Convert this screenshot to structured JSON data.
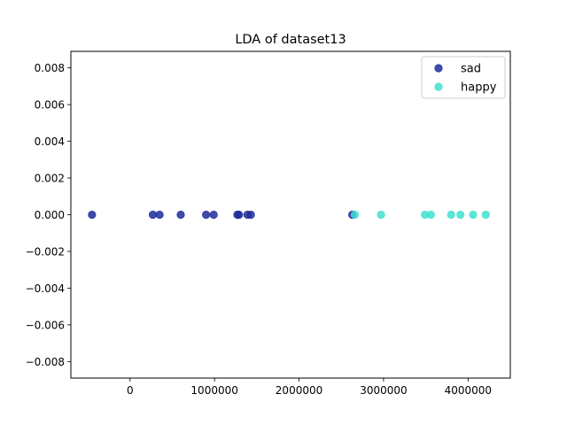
{
  "chart_data": {
    "type": "scatter",
    "title": "LDA of dataset13",
    "xlabel": "",
    "ylabel": "",
    "xlim": [
      -700000,
      4500000
    ],
    "ylim": [
      -0.0089,
      0.0089
    ],
    "x_ticks": [
      0,
      1000000,
      2000000,
      3000000,
      4000000
    ],
    "y_ticks": [
      0.008,
      0.006,
      0.004,
      0.002,
      0.0,
      -0.002,
      -0.004,
      -0.006,
      -0.008
    ],
    "x_tick_labels": [
      "0",
      "1000000",
      "2000000",
      "3000000",
      "4000000"
    ],
    "y_tick_labels": [
      "0.008",
      "0.006",
      "0.004",
      "0.002",
      "0.000",
      "−0.002",
      "−0.004",
      "−0.006",
      "−0.008"
    ],
    "grid": false,
    "legend_position": "top-right",
    "series": [
      {
        "name": "sad",
        "color": "#1f2a9a",
        "x": [
          -450000,
          270000,
          350000,
          600000,
          900000,
          990000,
          1270000,
          1290000,
          1390000,
          1430000,
          2630000
        ],
        "y": [
          0,
          0,
          0,
          0,
          0,
          0,
          0,
          0,
          0,
          0,
          0
        ]
      },
      {
        "name": "happy",
        "color": "#40e0d0",
        "x": [
          2660000,
          2970000,
          3490000,
          3560000,
          3800000,
          3910000,
          4060000,
          4210000
        ],
        "y": [
          0,
          0,
          0,
          0,
          0,
          0,
          0,
          0
        ]
      }
    ]
  }
}
